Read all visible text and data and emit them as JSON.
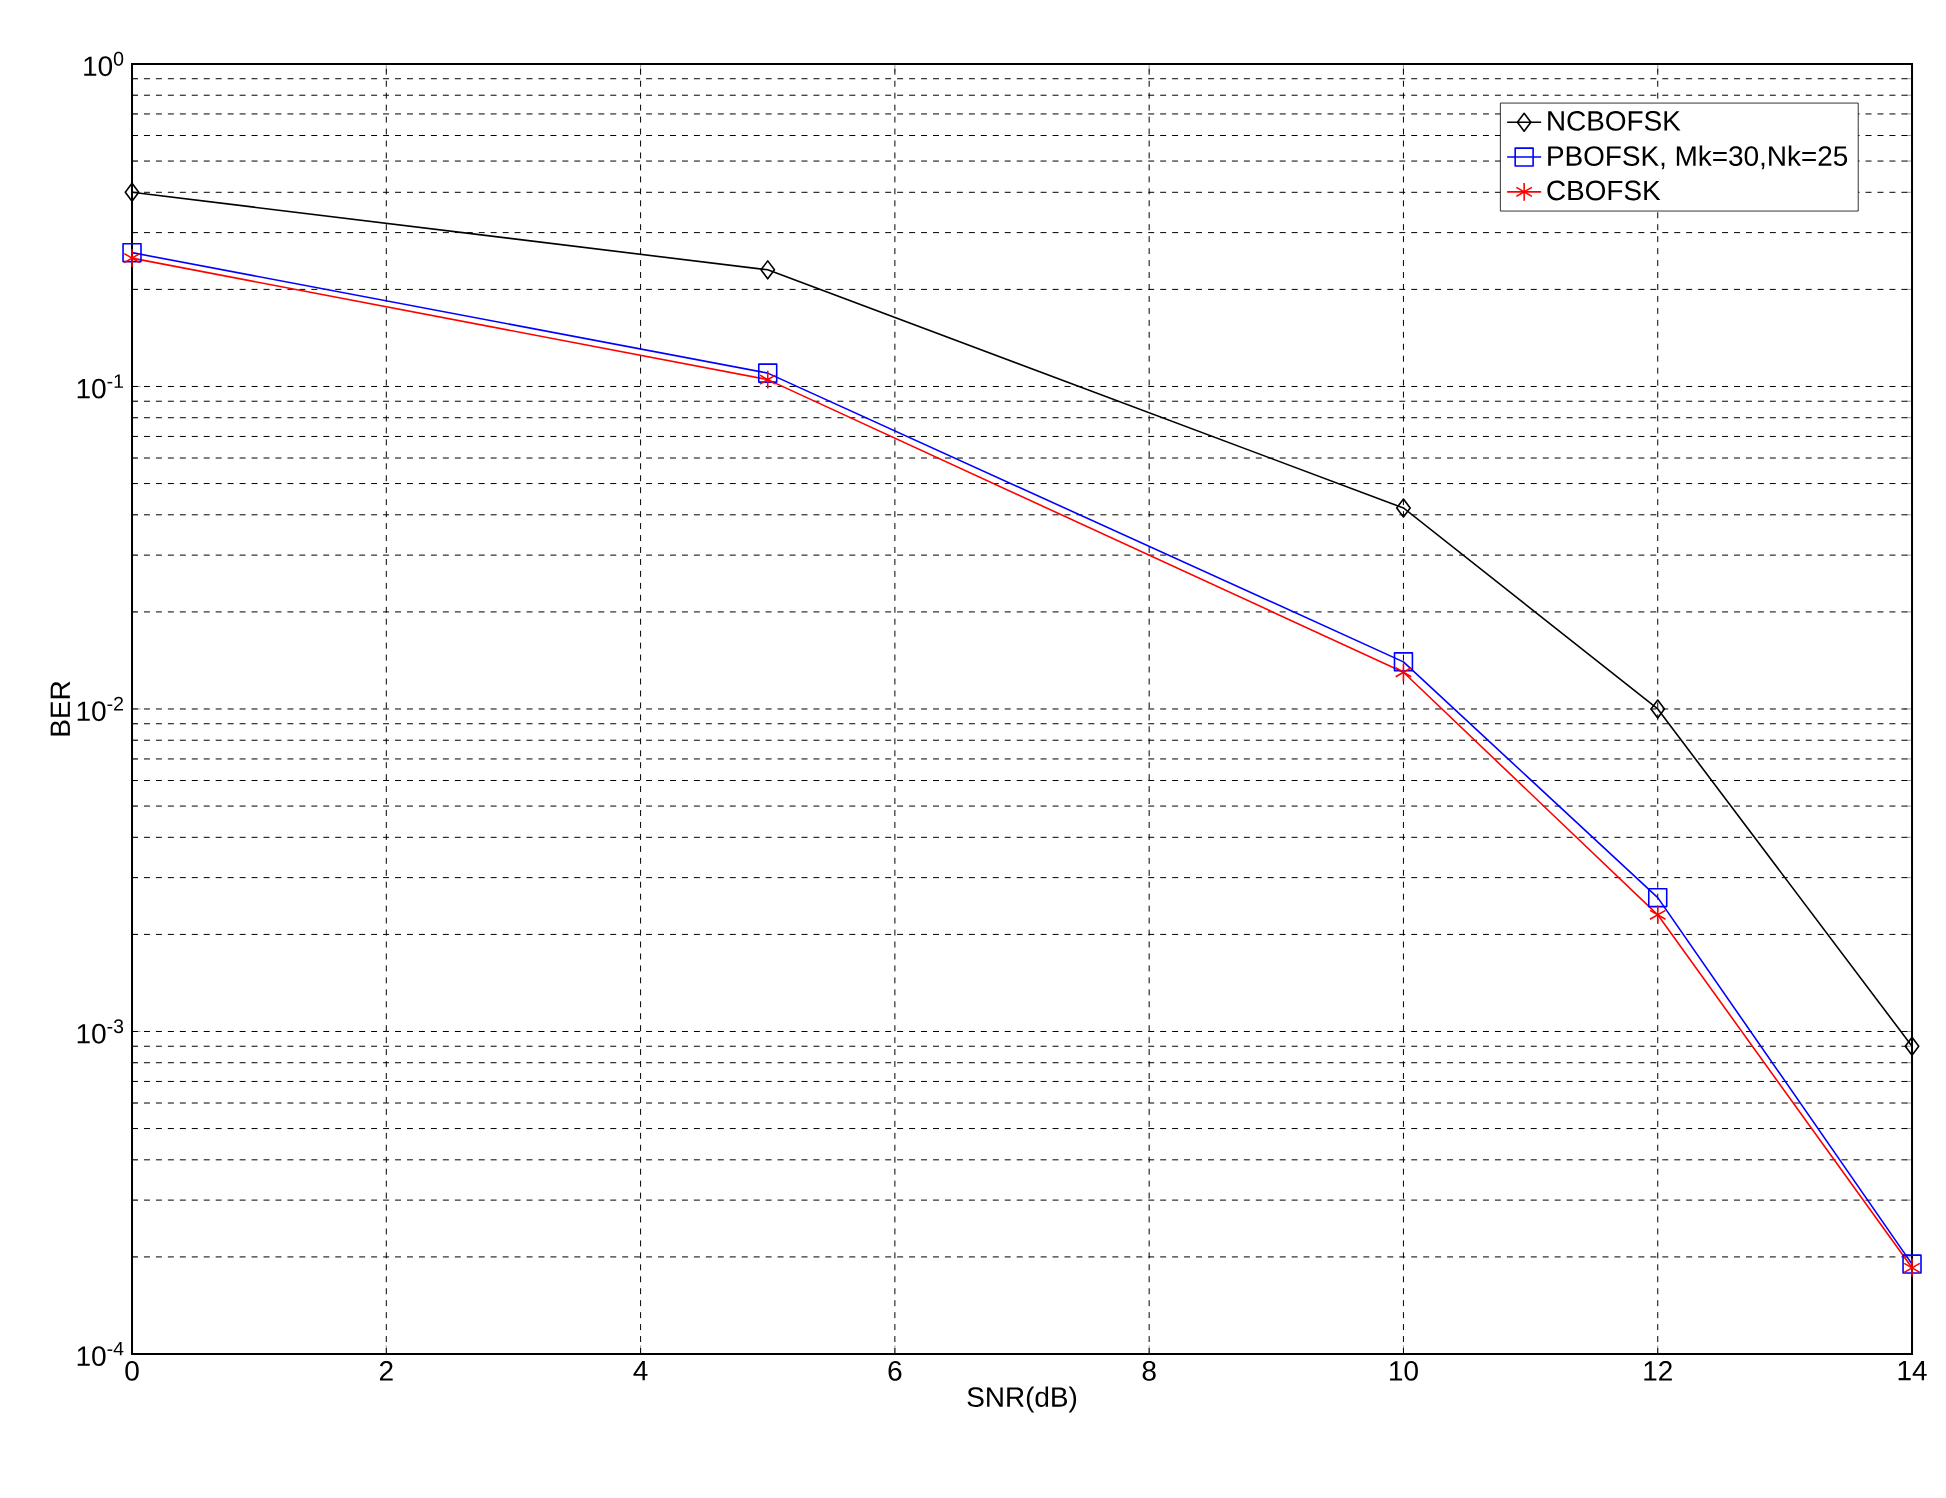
{
  "chart_data": {
    "type": "line",
    "xlabel": "SNR(dB)",
    "ylabel": "BER",
    "x": [
      0,
      5,
      10,
      12,
      14
    ],
    "series": [
      {
        "name": "NCBOFSK",
        "color": "#000000",
        "marker": "diamond",
        "values": [
          0.4,
          0.23,
          0.042,
          0.01,
          0.0009
        ]
      },
      {
        "name": "PBOFSK, Mk=30,Nk=25",
        "color": "#0000ff",
        "marker": "square",
        "values": [
          0.26,
          0.11,
          0.014,
          0.0026,
          0.00019
        ]
      },
      {
        "name": "CBOFSK",
        "color": "#ff0000",
        "marker": "cross",
        "values": [
          0.25,
          0.105,
          0.013,
          0.0023,
          0.000185
        ]
      }
    ],
    "log": "y",
    "xlim": [
      0,
      14
    ],
    "ylim": [
      0.0001,
      1
    ],
    "xticks": [
      0,
      2,
      4,
      6,
      8,
      10,
      12,
      14
    ],
    "yticks": [
      {
        "value": 0.0001,
        "label": "10$^{-4}$"
      },
      {
        "value": 0.001,
        "label": "10$^{-3}$"
      },
      {
        "value": 0.01,
        "label": "10$^{-2}$"
      },
      {
        "value": 0.1,
        "label": "10$^{-1}$"
      },
      {
        "value": 1,
        "label": "10$^{0}$"
      }
    ],
    "grid": true,
    "legend": "top right",
    "line_style": "solid"
  }
}
